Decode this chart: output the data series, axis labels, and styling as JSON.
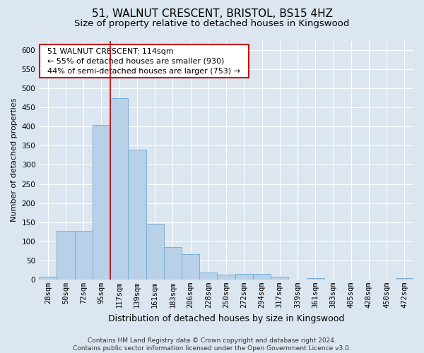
{
  "title": "51, WALNUT CRESCENT, BRISTOL, BS15 4HZ",
  "subtitle": "Size of property relative to detached houses in Kingswood",
  "xlabel": "Distribution of detached houses by size in Kingswood",
  "ylabel": "Number of detached properties",
  "categories": [
    "28sqm",
    "50sqm",
    "72sqm",
    "95sqm",
    "117sqm",
    "139sqm",
    "161sqm",
    "183sqm",
    "206sqm",
    "228sqm",
    "250sqm",
    "272sqm",
    "294sqm",
    "317sqm",
    "339sqm",
    "361sqm",
    "383sqm",
    "405sqm",
    "428sqm",
    "450sqm",
    "472sqm"
  ],
  "values": [
    8,
    128,
    128,
    405,
    475,
    340,
    145,
    85,
    67,
    18,
    12,
    15,
    15,
    7,
    0,
    4,
    0,
    0,
    0,
    0,
    4
  ],
  "bar_color": "#b8d0e8",
  "bar_edgecolor": "#7aafd4",
  "property_line_index": 4,
  "property_line_color": "#cc0000",
  "annotation_text": "  51 WALNUT CRESCENT: 114sqm  \n  ← 55% of detached houses are smaller (930)  \n  44% of semi-detached houses are larger (753) →  ",
  "annotation_box_color": "#ffffff",
  "annotation_box_edgecolor": "#cc0000",
  "ylim": [
    0,
    625
  ],
  "yticks": [
    0,
    50,
    100,
    150,
    200,
    250,
    300,
    350,
    400,
    450,
    500,
    550,
    600
  ],
  "footnote": "Contains HM Land Registry data © Crown copyright and database right 2024.\nContains public sector information licensed under the Open Government Licence v3.0.",
  "background_color": "#dce6f0",
  "plot_background_color": "#dce6f0",
  "grid_color": "#ffffff",
  "title_fontsize": 11,
  "subtitle_fontsize": 9.5,
  "xlabel_fontsize": 9,
  "ylabel_fontsize": 8,
  "tick_fontsize": 7.5,
  "footnote_fontsize": 6.5,
  "annotation_fontsize": 8
}
